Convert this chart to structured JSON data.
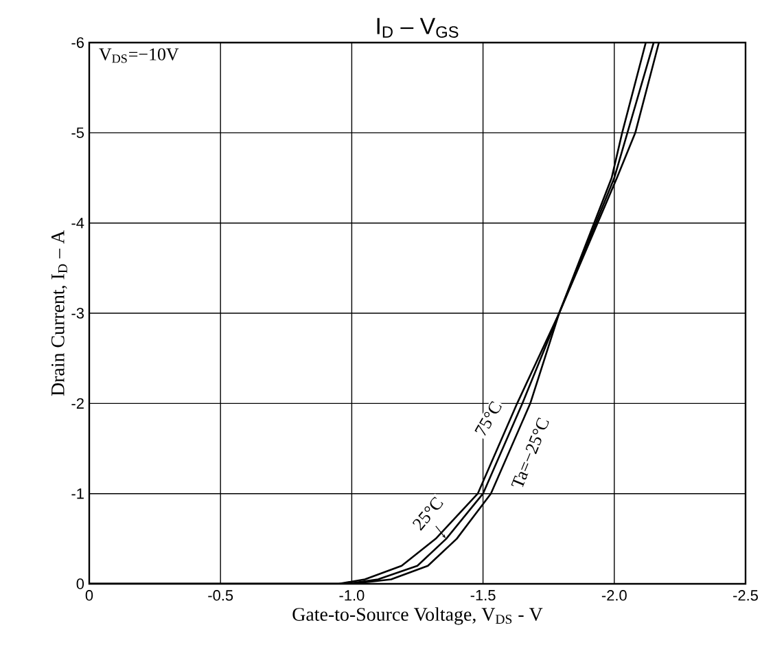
{
  "chart_data": {
    "type": "line",
    "title": "I$_{D}$ – V$_{GS}$",
    "xlabel": "Gate-to-Source Voltage, V$_{DS}$  -  V",
    "ylabel": "Drain Current, I$_{D}$  –  A",
    "annotations": [
      "V$_{DS}$=−10V"
    ],
    "xlim": [
      0,
      -2.5
    ],
    "ylim": [
      0,
      -6
    ],
    "xticks": [
      0,
      -0.5,
      {
        "value": -1.0,
        "label": "-1.0"
      },
      -1.5,
      {
        "value": -2.0,
        "label": "-2.0"
      },
      -2.5
    ],
    "yticks": [
      0,
      -1,
      -2,
      -3,
      -4,
      -5,
      -6
    ],
    "grid": true,
    "legend": false,
    "marker": "none",
    "line_style": "solid",
    "series": [
      {
        "name": "75°C",
        "color": "#000000",
        "x": [
          0,
          -0.95,
          -1.05,
          -1.19,
          -1.32,
          -1.48,
          -1.63,
          -1.79,
          -2.01,
          -2.08,
          -2.17
        ],
        "values": [
          0,
          0,
          -0.05,
          -0.2,
          -0.5,
          -1,
          -2,
          -3,
          -4.5,
          -5,
          -6
        ]
      },
      {
        "name": "25°C",
        "color": "#000000",
        "x": [
          0,
          -0.98,
          -1.1,
          -1.25,
          -1.36,
          -1.5,
          -1.65,
          -1.79,
          -2.0,
          -2.05,
          -2.15
        ],
        "values": [
          0,
          0,
          -0.05,
          -0.2,
          -0.5,
          -1,
          -2,
          -3,
          -4.5,
          -5,
          -6
        ]
      },
      {
        "name": "Ta=−25°C",
        "color": "#000000",
        "x": [
          0,
          -1.0,
          -1.15,
          -1.29,
          -1.4,
          -1.53,
          -1.68,
          -1.79,
          -1.99,
          -2.03,
          -2.12
        ],
        "values": [
          0,
          0,
          -0.05,
          -0.2,
          -0.5,
          -1,
          -2,
          -3,
          -4.5,
          -5,
          -6
        ]
      }
    ]
  }
}
